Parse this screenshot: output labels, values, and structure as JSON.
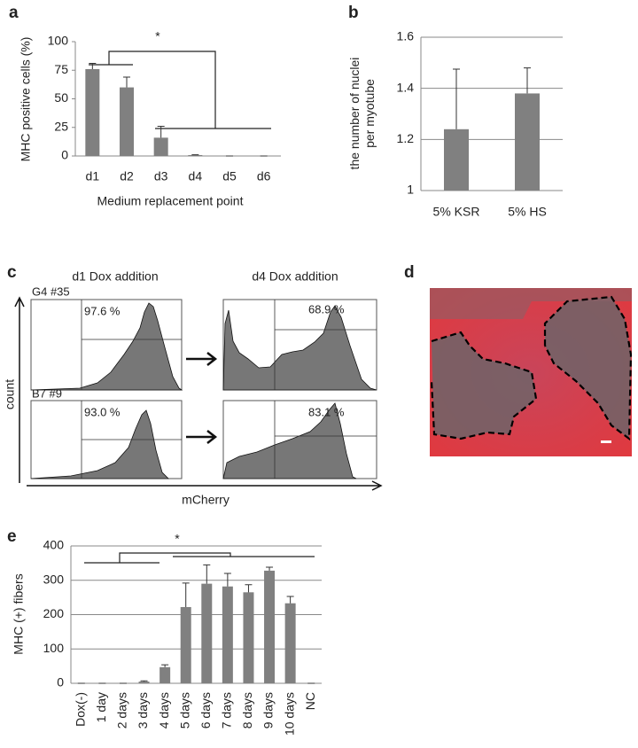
{
  "chart_data": [
    {
      "type": "bar",
      "panel": "a",
      "ylabel": "MHC positive cells (%)",
      "xlabel": "Medium replacement point",
      "categories": [
        "d1",
        "d2",
        "d3",
        "d4",
        "d5",
        "d6"
      ],
      "values": [
        76,
        60,
        16,
        0.8,
        0,
        0
      ],
      "errors": [
        5,
        9,
        10,
        0.3,
        0,
        0
      ],
      "color": "#808080",
      "ylim": [
        0,
        100
      ],
      "yticks": [
        0,
        25,
        50,
        75,
        100
      ],
      "grid": false,
      "annotation": "*"
    },
    {
      "type": "bar",
      "panel": "b",
      "ylabel": [
        "the number of nuclei",
        "per myotube"
      ],
      "categories": [
        "5% KSR",
        "5% HS"
      ],
      "values": [
        1.24,
        1.38
      ],
      "errors": [
        0.235,
        0.1
      ],
      "color": "#808080",
      "ylim": [
        1,
        1.6
      ],
      "yticks": [
        1,
        1.2,
        1.4,
        1.6
      ],
      "grid": true
    },
    {
      "type": "bar",
      "panel": "e",
      "ylabel": "MHC (+) fibers",
      "categories": [
        "Dox(-)",
        "1 day",
        "2 days",
        "3 days",
        "4 days",
        "5 days",
        "6 days",
        "7 days",
        "8 days",
        "9 days",
        "10 days",
        "NC"
      ],
      "values": [
        0,
        0,
        0,
        5,
        47,
        222,
        290,
        282,
        265,
        328,
        233,
        0
      ],
      "errors": [
        0,
        0,
        0,
        2,
        7,
        70,
        55,
        38,
        22,
        10,
        20,
        0
      ],
      "color": "#808080",
      "ylim": [
        0,
        400
      ],
      "yticks": [
        0,
        100,
        200,
        300,
        400
      ],
      "grid": true,
      "annotation": "*"
    }
  ],
  "panel_c": {
    "label": "c",
    "columns": [
      "d1 Dox addition",
      "d4 Dox addition"
    ],
    "rows": [
      {
        "name": "G4 #35",
        "values": [
          "97.6 %",
          "68.9 %"
        ]
      },
      {
        "name": "B7 #9",
        "values": [
          "93.0 %",
          "83.1 %"
        ]
      }
    ],
    "ylabel": "count",
    "xlabel": "mCherry"
  },
  "panel_d": {
    "label": "d"
  }
}
